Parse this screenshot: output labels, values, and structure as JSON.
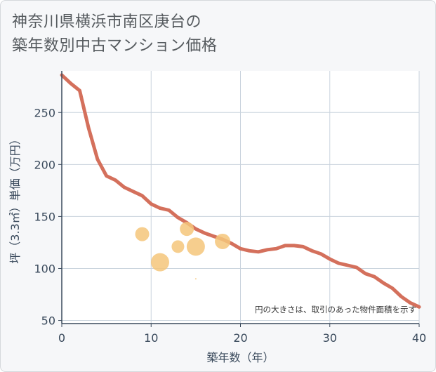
{
  "title": {
    "line1": "神奈川県横浜市南区庚台の",
    "line2": "築年数別中古マンション価格"
  },
  "chart_data": {
    "type": "scatter",
    "xlabel": "築年数（年）",
    "ylabel": "坪（3.3㎡）単価（万円）",
    "xlim": [
      0,
      40
    ],
    "ylim": [
      47,
      290
    ],
    "xticks": [
      0,
      10,
      20,
      30,
      40
    ],
    "yticks": [
      50,
      100,
      150,
      200,
      250
    ],
    "grid": true,
    "note": "円の大きさは、取引のあった物件面積を示す",
    "colors": {
      "line": "#d4705c",
      "bubble": "#f5c57a",
      "grid": "#c9d3dd",
      "axis": "#3a4a5c"
    },
    "series": [
      {
        "name": "trend",
        "kind": "line",
        "x": [
          0,
          1,
          2,
          3,
          4,
          5,
          6,
          7,
          8,
          9,
          10,
          11,
          12,
          13,
          14,
          15,
          16,
          17,
          18,
          19,
          20,
          21,
          22,
          23,
          24,
          25,
          26,
          27,
          28,
          29,
          30,
          31,
          32,
          33,
          34,
          35,
          36,
          37,
          38,
          39,
          40
        ],
        "y": [
          286,
          278,
          271,
          235,
          205,
          189,
          185,
          178,
          174,
          170,
          162,
          158,
          156,
          149,
          144,
          138,
          134,
          131,
          128,
          124,
          119,
          117,
          116,
          118,
          119,
          122,
          122,
          121,
          117,
          114,
          109,
          105,
          103,
          101,
          95,
          92,
          86,
          81,
          73,
          67,
          63
        ]
      },
      {
        "name": "transactions",
        "kind": "bubble",
        "points": [
          {
            "x": 9,
            "y": 133,
            "size": 10
          },
          {
            "x": 11,
            "y": 106,
            "size": 13
          },
          {
            "x": 13,
            "y": 121,
            "size": 9
          },
          {
            "x": 14,
            "y": 138,
            "size": 10
          },
          {
            "x": 15,
            "y": 121,
            "size": 13
          },
          {
            "x": 15,
            "y": 90,
            "size": 1
          },
          {
            "x": 18,
            "y": 126,
            "size": 11
          }
        ]
      }
    ]
  }
}
